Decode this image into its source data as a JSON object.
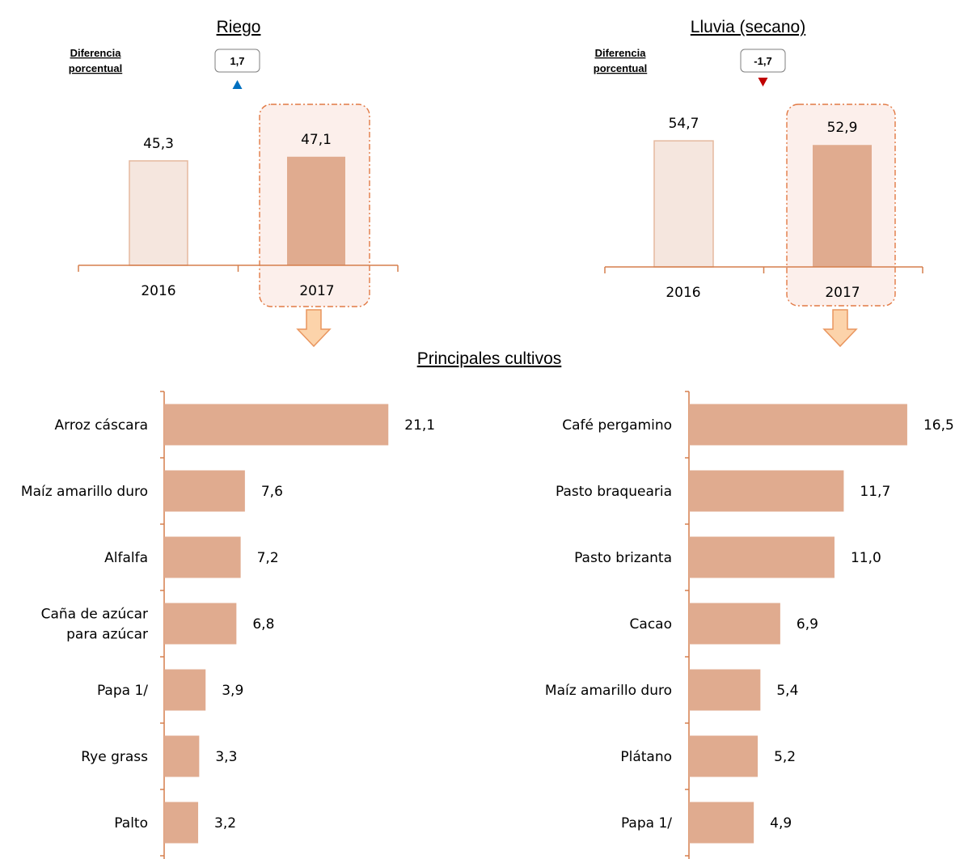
{
  "crops_title": "Principales cultivos",
  "colors": {
    "bar_2016_fill": "#f5e6de",
    "bar_2016_stroke": "#e5b99f",
    "bar_2017": "#e0ab8f",
    "axis": "#d57f4d",
    "highlight_fill": "#fcefeb",
    "highlight_stroke": "#e27a45",
    "arrow_fill": "#fcd3aa",
    "arrow_stroke": "#e9955e",
    "up_marker": "#0070c0",
    "down_marker": "#c00000"
  },
  "chart_data": [
    {
      "type": "bar",
      "title": "Riego",
      "diff_label_1": "Diferencia",
      "diff_label_2": "porcentual",
      "diff_value": "1,7",
      "diff_direction": "up",
      "categories": [
        "2016",
        "2017"
      ],
      "values": [
        45.3,
        47.1
      ],
      "value_labels": [
        "45,3",
        "47,1"
      ],
      "highlight": "2017"
    },
    {
      "type": "bar",
      "title": "Lluvia (secano)",
      "diff_label_1": "Diferencia",
      "diff_label_2": "porcentual",
      "diff_value": "-1,7",
      "diff_direction": "down",
      "categories": [
        "2016",
        "2017"
      ],
      "values": [
        54.7,
        52.9
      ],
      "value_labels": [
        "54,7",
        "52,9"
      ],
      "highlight": "2017"
    },
    {
      "type": "bar",
      "orientation": "horizontal",
      "categories": [
        "Arroz cáscara",
        "Maíz amarillo duro",
        "Alfalfa",
        "Caña de azúcar para azúcar",
        "Papa 1/",
        "Rye grass",
        "Palto"
      ],
      "category_lines": [
        [
          "Arroz cáscara"
        ],
        [
          "Maíz amarillo duro"
        ],
        [
          "Alfalfa"
        ],
        [
          "Caña de azúcar",
          "para azúcar"
        ],
        [
          "Papa 1/"
        ],
        [
          "Rye grass"
        ],
        [
          "Palto"
        ]
      ],
      "values": [
        21.1,
        7.6,
        7.2,
        6.8,
        3.9,
        3.3,
        3.2
      ],
      "value_labels": [
        "21,1",
        "7,6",
        "7,2",
        "6,8",
        "3,9",
        "3,3",
        "3,2"
      ]
    },
    {
      "type": "bar",
      "orientation": "horizontal",
      "categories": [
        "Café pergamino",
        "Pasto braquearia",
        "Pasto brizanta",
        "Cacao",
        "Maíz amarillo duro",
        "Plátano",
        "Papa 1/"
      ],
      "category_lines": [
        [
          "Café pergamino"
        ],
        [
          "Pasto braquearia"
        ],
        [
          "Pasto brizanta"
        ],
        [
          "Cacao"
        ],
        [
          "Maíz amarillo duro"
        ],
        [
          "Plátano"
        ],
        [
          "Papa 1/"
        ]
      ],
      "values": [
        16.5,
        11.7,
        11.0,
        6.9,
        5.4,
        5.2,
        4.9
      ],
      "value_labels": [
        "16,5",
        "11,7",
        "11,0",
        "6,9",
        "5,4",
        "5,2",
        "4,9"
      ]
    }
  ]
}
